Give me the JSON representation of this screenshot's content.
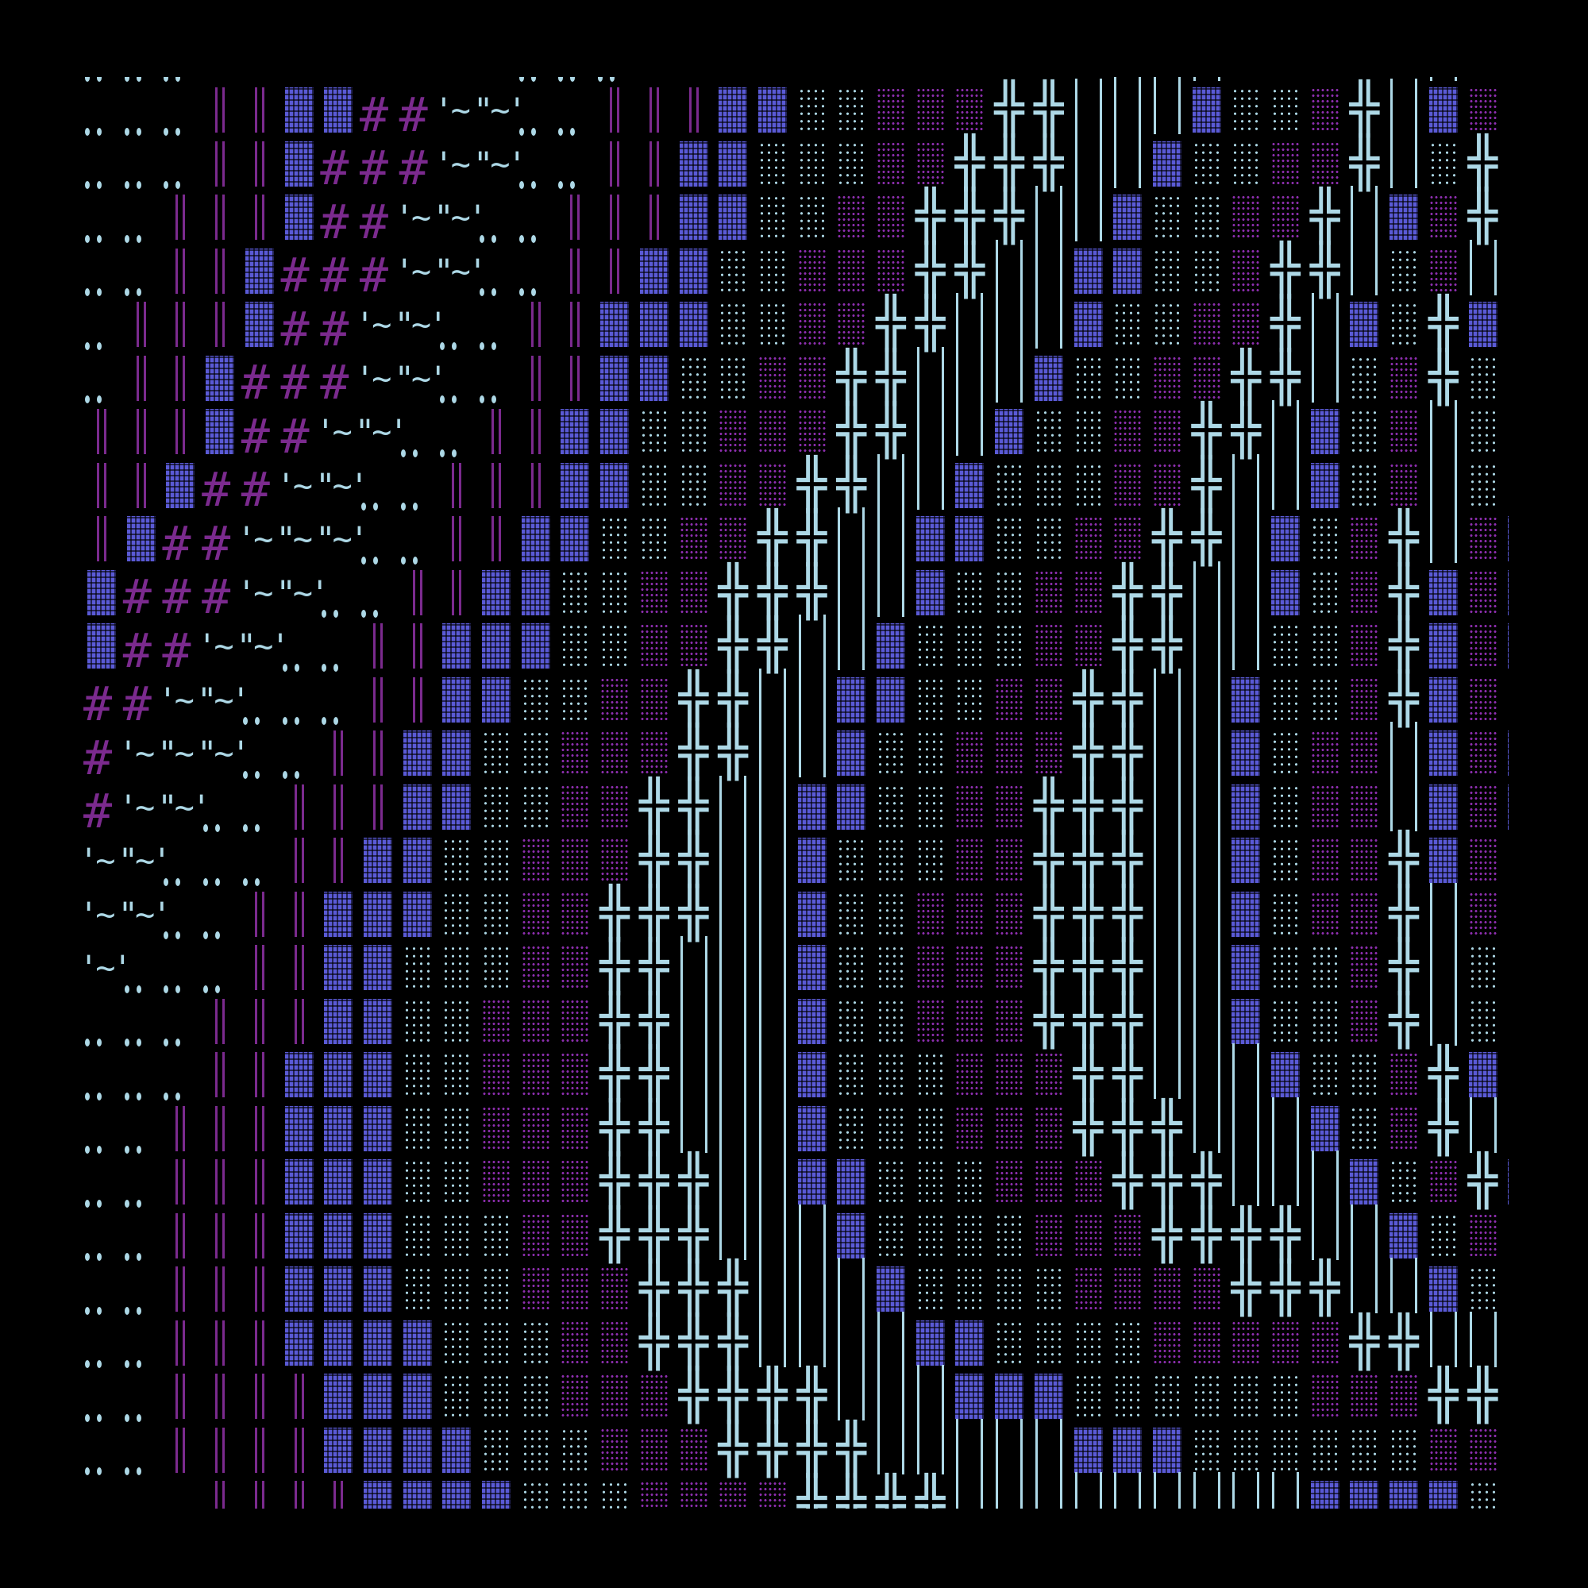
{
  "palette": {
    "background": "#000000",
    "light": "#add8e6",
    "purple": "#7b2a8e",
    "dot": "#8e2fb0",
    "block": "#5a5ad6"
  },
  "glyphs": {
    ".": {
      "name": "double-dot"
    },
    "H": {
      "name": "purple-double-bar"
    },
    "B": {
      "name": "blue-shade-block"
    },
    "#": {
      "name": "hash",
      "text": "#"
    },
    "T": {
      "name": "tilde-quote",
      "first": "'~",
      "middle": "\"~",
      "end": "'"
    },
    "o": {
      "name": "light-dot-shade"
    },
    "p": {
      "name": "purple-dot-shade"
    },
    "X": {
      "name": "double-cross",
      "text": "╬"
    },
    "l": {
      "name": "light-double-bar"
    }
  },
  "rows": [
    "...        ...            lll     l l",
    "...HHBB##TT..HHHBBoopppXXlllBoopXlBpl",
    "...HHB###TT..HHBBoooppXXXllBooppXloXo",
    "..HHHB##TT..HHHBBooppXXXllBooppXlBpXo",
    "..HHB###TT..HHBBoopppXXllBBoopXXloplp",
    ".HHHB##TT..HHBBBooppXXlllBooppXlBoXBo",
    ".HHB###TT..HHBBooppXXlllBooppXXlopXoo",
    "HHHB##TT..HHBBoopppXXllBooppXXlBoplol",
    "HHB##TT..HHHBBooppXXllBoooppXllBoplol",
    "HB##TTT..HHBBooppXXllBBooppXXlBopXlpB",
    "B###TT..HHBBooppXXXllBooppXXllBopXBpB",
    "B##TT..HHBBBooppXXllBoooppXXlloopXBpB",
    "##TT...HHBBooppXXllBBooppXXllBoopXBpo",
    "#TTT..HHBBoopppXXllBoopppXXllBopplBpB",
    "#TT..HHHBBooppXXllBBooppXXXllBopplBpB",
    "TT...HHBBoopppXXllBoooppXXXllBoppXBpl",
    "TT..HHBBBooppXXXllBoopppXXXllBoppXlpl",
    "T...HHBBoooppXXlllBoopppXXXllBoopXloo",
    "...HHHBBoopppXXlllBoopppXXXllBoopXloo",
    "...HHBBBoopppXXlllBooopppXXlllBoopXBp",
    "..HHHBBBoopppXXlllBooopppXXXlllBopXlo",
    "..HHHBBBoopppXXXllBBooopppXXXlllBopXB",
    "..HHHBBBoooppXXXlllBoooopppXXXXllBopo",
    "..HHHBBBooopppXXXlllBooooppppXXXllBop",
    "..HHHBBBBoooppXXXllllBBoooopppppXXllo",
    "..HHHHBBBooopppXXXXlllBBBoooooopppXXl",
    "..HHHHBBBBooopppXXXXlllllBBBooooooppo",
    "   HHHHBBBBoooppppXXXXlllllllllBBBBoo"
  ]
}
